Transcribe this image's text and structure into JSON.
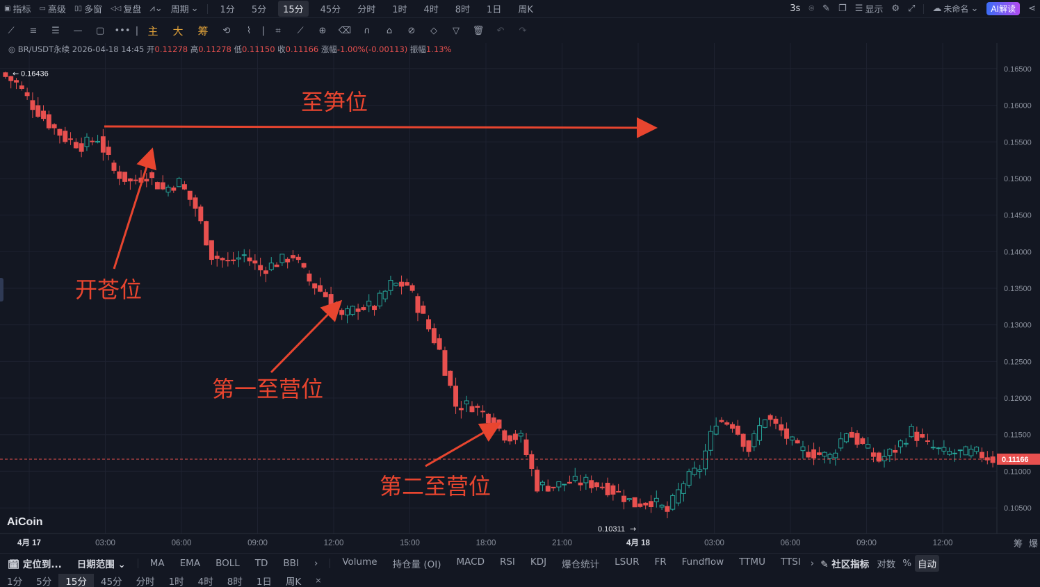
{
  "topbar": {
    "left_items": [
      "指标",
      "高级",
      "多窗",
      "复盘"
    ],
    "period_label": "周期",
    "timeframes": [
      "1分",
      "5分",
      "15分",
      "45分",
      "分时",
      "1时",
      "4时",
      "8时",
      "1日",
      "周K"
    ],
    "active_timeframe": "15分",
    "refresh": "3s",
    "display": "显示",
    "unnamed": "未命名",
    "ai_button": "AI解读"
  },
  "toolbar": {
    "main_label": "主",
    "big_label": "大",
    "chip_label": "筹"
  },
  "info": {
    "symbol": "BR/USDT永续",
    "datetime": "2026-04-18 14:45",
    "open_label": "开",
    "open": "0.11278",
    "high_label": "高",
    "high": "0.11278",
    "low_label": "低",
    "low": "0.11150",
    "close_label": "收",
    "close": "0.11166",
    "change_label": "涨幅",
    "change": "-1.00%(-0.00113)",
    "amplitude_label": "振幅",
    "amplitude": "1.13%"
  },
  "logo": "AiCoin",
  "chart_data": {
    "type": "candlestick",
    "y_ticks": [
      "0.16500",
      "0.16000",
      "0.15500",
      "0.15000",
      "0.14500",
      "0.14000",
      "0.13500",
      "0.13000",
      "0.12500",
      "0.12000",
      "0.11500",
      "0.11000",
      "0.10500"
    ],
    "ylim": [
      0.1015,
      0.1685
    ],
    "x_ticks": [
      "4月 17",
      "03:00",
      "06:00",
      "09:00",
      "12:00",
      "15:00",
      "18:00",
      "21:00",
      "4月 18",
      "03:00",
      "06:00",
      "09:00",
      "12:00"
    ],
    "current_price": "0.11166",
    "max_label": "0.16436",
    "min_label": "0.10311",
    "annotations": [
      "至笋位",
      "开苍位",
      "第一至营位",
      "第二至营位"
    ],
    "key_prices": [
      0.1644,
      0.163,
      0.16,
      0.1575,
      0.1555,
      0.1545,
      0.1555,
      0.151,
      0.1495,
      0.1505,
      0.1485,
      0.1495,
      0.146,
      0.1395,
      0.1385,
      0.1395,
      0.1375,
      0.1385,
      0.1395,
      0.136,
      0.134,
      0.131,
      0.1325,
      0.1325,
      0.1355,
      0.1355,
      0.131,
      0.1265,
      0.119,
      0.119,
      0.1175,
      0.115,
      0.1145,
      0.108,
      0.108,
      0.1085,
      0.1085,
      0.108,
      0.107,
      0.1055,
      0.106,
      0.1045,
      0.1085,
      0.1105,
      0.117,
      0.1165,
      0.113,
      0.1175,
      0.1155,
      0.113,
      0.1125,
      0.112,
      0.1155,
      0.1135,
      0.1115,
      0.113,
      0.1155,
      0.1135,
      0.1125,
      0.1125,
      0.1125,
      0.11166
    ],
    "candles_per_segment": 3
  },
  "bottombar": {
    "locate": "定位到...",
    "date_range": "日期范围",
    "indicators1": [
      "MA",
      "EMA",
      "BOLL",
      "TD",
      "BBI"
    ],
    "indicators2": [
      "Volume",
      "持仓量 (OI)",
      "MACD",
      "RSI",
      "KDJ",
      "爆仓统计",
      "LSUR",
      "FR",
      "Fundflow",
      "TTMU",
      "TTSI"
    ],
    "community": "社区指标",
    "log": "对数",
    "percent": "%",
    "auto": "自动",
    "right_small": [
      "筹",
      "爆"
    ]
  },
  "bottom_timeframes": [
    "1分",
    "5分",
    "15分",
    "45分",
    "分时",
    "1时",
    "4时",
    "8时",
    "1日",
    "周K"
  ],
  "colors": {
    "up": "#26a69a",
    "down": "#e8504f",
    "arrow": "#e8452f",
    "bg": "#131722",
    "grid": "#1e2230"
  }
}
